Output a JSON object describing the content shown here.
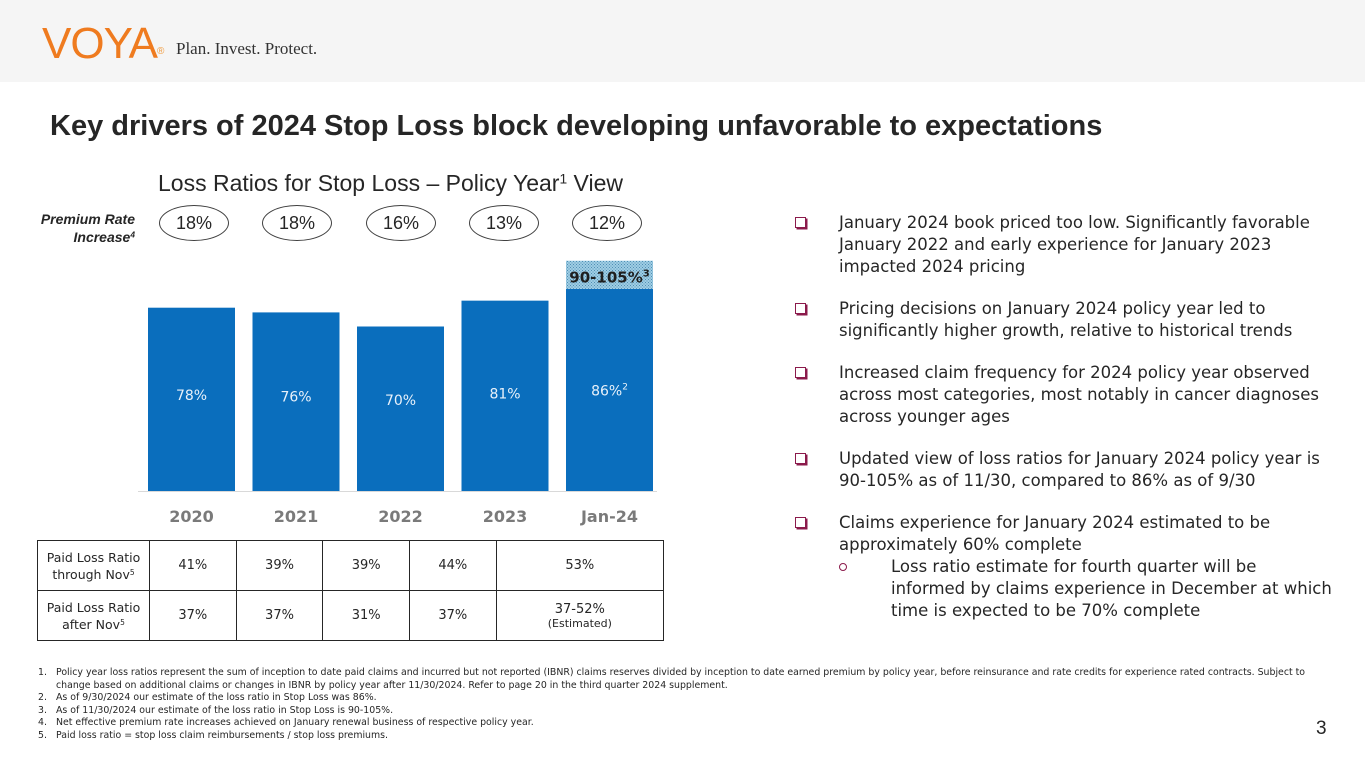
{
  "header": {
    "logo_text": "VOYA",
    "tagline": "Plan. Invest. Protect."
  },
  "page_title": "Key drivers of 2024 Stop Loss block developing unfavorable to expectations",
  "premium_rate": {
    "label_line1": "Premium Rate",
    "label_line2": "Increase",
    "label_sup": "4",
    "values": [
      "18%",
      "18%",
      "16%",
      "13%",
      "12%"
    ]
  },
  "chart_data": {
    "type": "bar",
    "title": "Loss Ratios for Stop Loss – Policy Year",
    "title_sup": "1",
    "title_suffix": " View",
    "categories": [
      "2020",
      "2021",
      "2022",
      "2023",
      "Jan-24"
    ],
    "values": [
      78,
      76,
      70,
      81,
      86
    ],
    "value_labels": [
      "78%",
      "76%",
      "70%",
      "81%",
      "86%"
    ],
    "value_label_sups": [
      "",
      "",
      "",
      "",
      "2"
    ],
    "range_estimate": {
      "category": "Jan-24",
      "low": 90,
      "high": 105,
      "label": "90-105%",
      "label_sup": "3",
      "shown_above": 86,
      "shown_to": 98
    },
    "xlabel": "",
    "ylabel": "",
    "ylim": [
      0,
      100
    ],
    "grid": false,
    "legend": "none",
    "colors": {
      "bar": "#0a6ebd",
      "range_hatch": "#8fc6e0",
      "axis": "#d9d9d9",
      "tick_label": "#7a7a7a"
    }
  },
  "paid_table": {
    "rows": [
      {
        "label": "Paid Loss Ratio through Nov",
        "label_line1": "Paid Loss Ratio",
        "label_line2": "through Nov",
        "label_sup": "5",
        "cells": [
          "41%",
          "39%",
          "39%",
          "44%",
          "53%"
        ]
      },
      {
        "label": "Paid Loss Ratio after Nov",
        "label_line1": "Paid Loss Ratio",
        "label_line2": "after Nov",
        "label_sup": "5",
        "cells": [
          "37%",
          "37%",
          "31%",
          "37%",
          "37-52%"
        ],
        "last_note": "(Estimated)"
      }
    ]
  },
  "bullets": [
    "January 2024 book priced too low. Significantly favorable January 2022 and early experience for January 2023 impacted 2024 pricing",
    "Pricing decisions on January 2024 policy year led to significantly higher growth, relative to historical trends",
    "Increased claim frequency for 2024 policy year observed across most categories, most notably in cancer diagnoses across younger ages",
    "Updated view of loss ratios for January 2024 policy year is 90-105% as of 11/30, compared to 86% as of 9/30",
    "Claims experience for January 2024 estimated to be approximately 60% complete"
  ],
  "sub_bullet": "Loss ratio estimate for fourth quarter will be informed by claims experience in December at which time is expected to be 70% complete",
  "footnotes": [
    "Policy year loss ratios represent the sum of inception to date paid claims and incurred but not reported (IBNR) claims reserves divided by inception to date earned premium by policy year, before reinsurance and rate credits for experience rated contracts. Subject to change based on additional claims or changes in IBNR by policy year after 11/30/2024. Refer to page 20 in the third quarter 2024 supplement.",
    "As of 9/30/2024 our estimate of the loss ratio in Stop Loss was 86%.",
    "As of 11/30/2024 our estimate of the loss ratio in Stop Loss is 90-105%.",
    "Net effective premium rate increases achieved on January renewal business of respective policy year.",
    "Paid loss ratio = stop loss claim reimbursements / stop loss premiums."
  ],
  "page_number": "3"
}
